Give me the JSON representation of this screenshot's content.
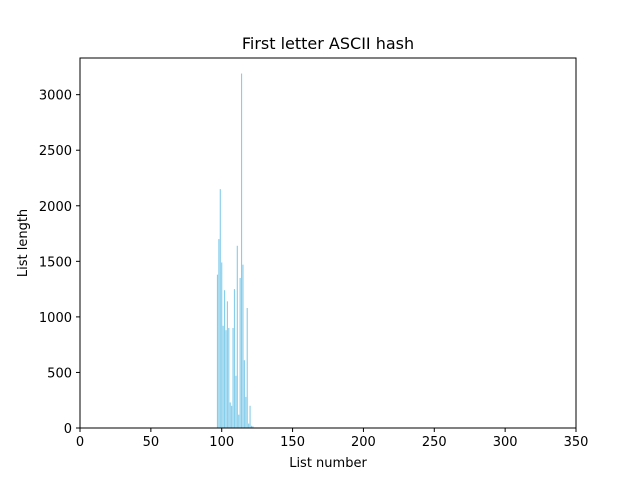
{
  "chart_data": {
    "type": "bar",
    "title": "First letter ASCII hash",
    "xlabel": "List number",
    "ylabel": "List length",
    "xlim": [
      0,
      350
    ],
    "ylim": [
      0,
      3330
    ],
    "xticks": [
      0,
      50,
      100,
      150,
      200,
      250,
      300,
      350
    ],
    "yticks": [
      0,
      500,
      1000,
      1500,
      2000,
      2500,
      3000
    ],
    "bar_color": "#87ceeb",
    "grid": false,
    "x": [
      97,
      98,
      99,
      100,
      101,
      102,
      103,
      104,
      105,
      106,
      107,
      108,
      109,
      110,
      111,
      112,
      113,
      114,
      115,
      116,
      117,
      118,
      119,
      120,
      121,
      122
    ],
    "values": [
      1380,
      1700,
      2150,
      1490,
      920,
      1240,
      880,
      1140,
      900,
      230,
      200,
      900,
      1250,
      470,
      1640,
      120,
      1350,
      3190,
      1470,
      610,
      280,
      1080,
      40,
      200,
      20,
      15
    ]
  }
}
